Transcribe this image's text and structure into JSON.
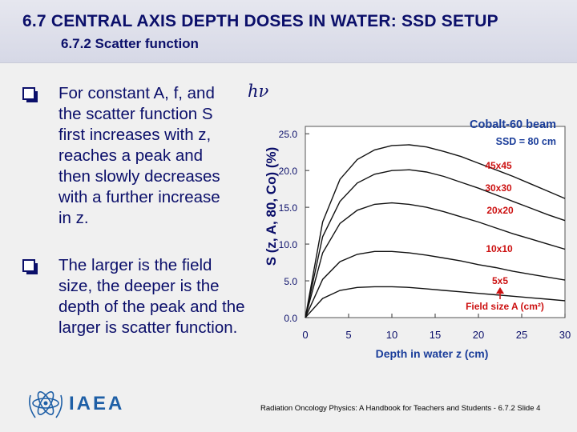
{
  "slide": {
    "title": "6.7  CENTRAL AXIS DEPTH DOSES IN WATER: SSD SETUP",
    "subtitle": "6.7.2 Scatter function",
    "bullet1_lines": [
      "For constant A, f, and",
      "the scatter function S",
      "first increases with z,",
      "reaches a peak and",
      "then slowly decreases",
      "with a further increase",
      "in z."
    ],
    "bullet1_symbol": "hν",
    "bullet2_lines": [
      "The larger is the field",
      "size, the deeper is the",
      "depth of the peak and the",
      "larger is scatter function."
    ],
    "footer": "Radiation Oncology Physics: A Handbook for Teachers and Students - 6.7.2 Slide 4",
    "logo_text": "IAEA",
    "accent_color": "#0b0f6a",
    "curve_label_color": "#cc1111"
  },
  "chart_data": {
    "type": "line",
    "title": "Cobalt-60 beam",
    "subtitle": "SSD = 80 cm",
    "xlabel": "Depth in water  z (cm)",
    "ylabel": "S (z, A, 80, Co)  (%)",
    "xlim": [
      0,
      30
    ],
    "ylim": [
      0,
      26
    ],
    "xticks": [
      0,
      5,
      10,
      15,
      20,
      25,
      30
    ],
    "yticks": [
      0.0,
      5.0,
      10.0,
      15.0,
      20.0,
      25.0
    ],
    "ytick_labels": [
      "0.0",
      "5.0",
      "10.0",
      "15.0",
      "20.0",
      "25.0"
    ],
    "annotation": "Field size A (cm²)",
    "series": [
      {
        "name": "45x45",
        "x": [
          0,
          2,
          4,
          6,
          8,
          10,
          12,
          14,
          16,
          18,
          20,
          22,
          24,
          26,
          28,
          30
        ],
        "values": [
          0,
          13.0,
          18.8,
          21.5,
          22.8,
          23.4,
          23.5,
          23.2,
          22.6,
          21.9,
          21.0,
          20.1,
          19.2,
          18.2,
          17.2,
          16.2
        ]
      },
      {
        "name": "30x30",
        "x": [
          0,
          2,
          4,
          6,
          8,
          10,
          12,
          14,
          16,
          18,
          20,
          22,
          24,
          26,
          28,
          30
        ],
        "values": [
          0,
          11.0,
          15.8,
          18.3,
          19.5,
          20.0,
          20.1,
          19.8,
          19.2,
          18.4,
          17.6,
          16.7,
          15.8,
          14.9,
          14.0,
          13.2
        ]
      },
      {
        "name": "20x20",
        "x": [
          0,
          2,
          4,
          6,
          8,
          10,
          12,
          14,
          16,
          18,
          20,
          22,
          24,
          26,
          28,
          30
        ],
        "values": [
          0,
          8.8,
          12.8,
          14.6,
          15.4,
          15.6,
          15.4,
          15.0,
          14.4,
          13.7,
          13.0,
          12.2,
          11.4,
          10.7,
          10.0,
          9.3
        ]
      },
      {
        "name": "10x10",
        "x": [
          0,
          2,
          4,
          6,
          8,
          10,
          12,
          14,
          16,
          18,
          20,
          22,
          24,
          26,
          28,
          30
        ],
        "values": [
          0,
          5.2,
          7.6,
          8.6,
          9.0,
          9.0,
          8.8,
          8.5,
          8.1,
          7.7,
          7.2,
          6.8,
          6.3,
          5.9,
          5.5,
          5.1
        ]
      },
      {
        "name": "5x5",
        "x": [
          0,
          2,
          4,
          6,
          8,
          10,
          12,
          14,
          16,
          18,
          20,
          22,
          24,
          26,
          28,
          30
        ],
        "values": [
          0,
          2.6,
          3.7,
          4.1,
          4.2,
          4.2,
          4.1,
          3.9,
          3.7,
          3.5,
          3.3,
          3.1,
          2.9,
          2.7,
          2.5,
          2.3
        ]
      }
    ],
    "grid": false
  }
}
